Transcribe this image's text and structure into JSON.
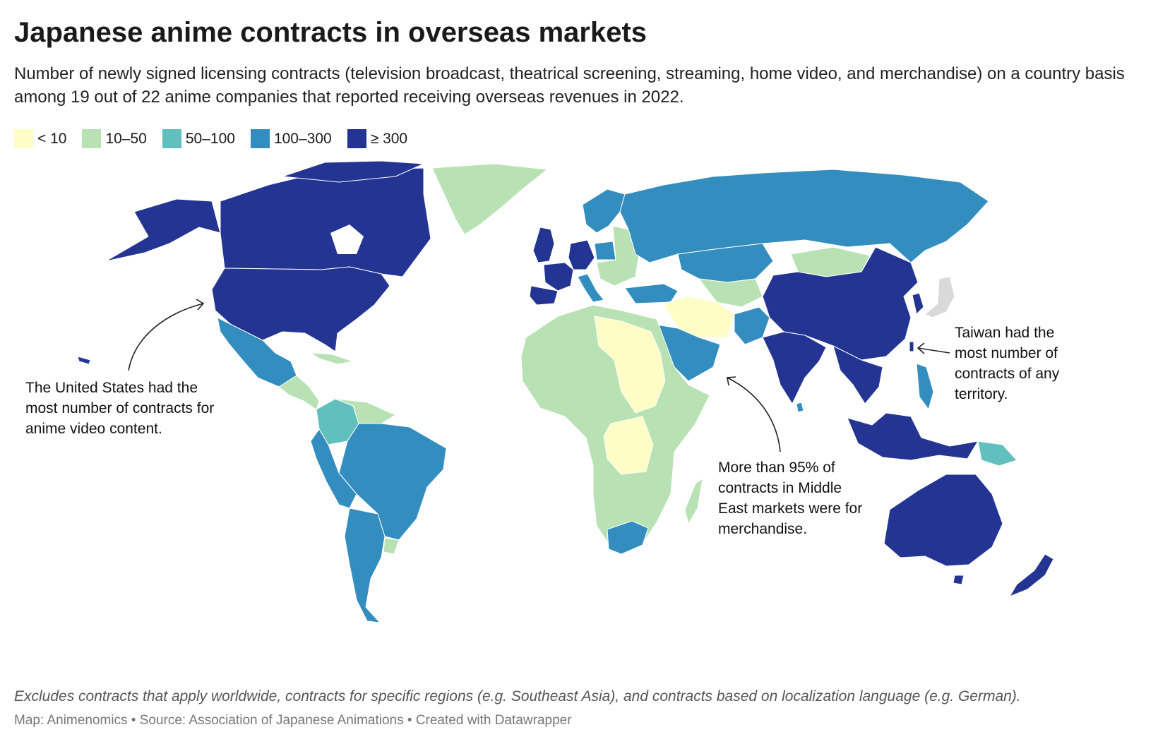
{
  "title": "Japanese anime contracts in overseas markets",
  "subtitle": "Number of newly signed licensing contracts (television broadcast, theatrical screening, streaming, home video, and merchandise) on a country basis among 19 out of 22 anime companies that reported receiving overseas revenues in 2022.",
  "legend": [
    {
      "label": "< 10",
      "color": "#fffdc6"
    },
    {
      "label": "10–50",
      "color": "#b8e2b4"
    },
    {
      "label": "50–100",
      "color": "#61c0bd"
    },
    {
      "label": "100–300",
      "color": "#338ebf"
    },
    {
      "label": "≥ 300",
      "color": "#243492"
    }
  ],
  "no_data_color": "#d9d9d9",
  "annotations": {
    "us": "The United States had the most number of contracts for anime video content.",
    "middle_east": "More than 95% of contracts in Middle East markets were for merchandise.",
    "taiwan": "Taiwan had the most number of contracts of any territory."
  },
  "note": "Excludes contracts that apply worldwide, contracts for specific regions (e.g. Southeast Asia), and contracts based on localization language (e.g. German).",
  "footer": "Map: Animenomics • Source: Association of Japanese Animations • Created with Datawrapper"
}
